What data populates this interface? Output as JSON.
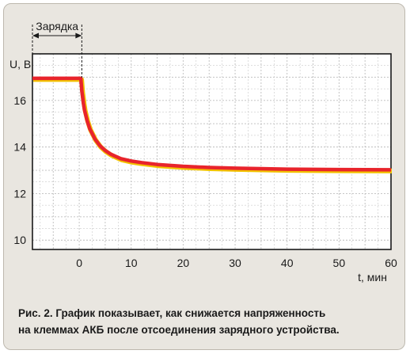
{
  "chart_data": {
    "type": "line",
    "xlabel": "t, мин",
    "ylabel": "U, В",
    "xlim": [
      -9,
      60
    ],
    "ylim": [
      9.6,
      18
    ],
    "x_ticks": [
      0,
      10,
      20,
      30,
      40,
      50,
      60
    ],
    "y_ticks": [
      10,
      12,
      14,
      16
    ],
    "grid": true,
    "annotation": {
      "text": "Зарядка",
      "from": -9,
      "to": 0.5
    },
    "series": [
      {
        "color": "#e8242c",
        "x": [
          -9,
          0.3,
          0.5,
          0.8,
          1,
          1.5,
          2,
          3,
          4,
          5,
          6,
          7,
          8,
          10,
          12,
          15,
          20,
          25,
          30,
          35,
          40,
          50,
          60
        ],
        "y": [
          16.95,
          16.95,
          16.4,
          15.9,
          15.6,
          15.15,
          14.8,
          14.35,
          14.05,
          13.85,
          13.7,
          13.6,
          13.5,
          13.4,
          13.33,
          13.25,
          13.17,
          13.12,
          13.09,
          13.07,
          13.05,
          13.03,
          13.02
        ]
      }
    ]
  },
  "caption": {
    "line1": "Рис. 2. График показывает, как снижается напряженность",
    "line2": "на клеммах АКБ после отсоединения зарядного устройства."
  },
  "colors": {
    "background": "#e9e6e0",
    "plot_area": "#ffffff",
    "grid": "#bdbdbd",
    "line": "#e8242c",
    "line_shadow": "#f2c200"
  }
}
